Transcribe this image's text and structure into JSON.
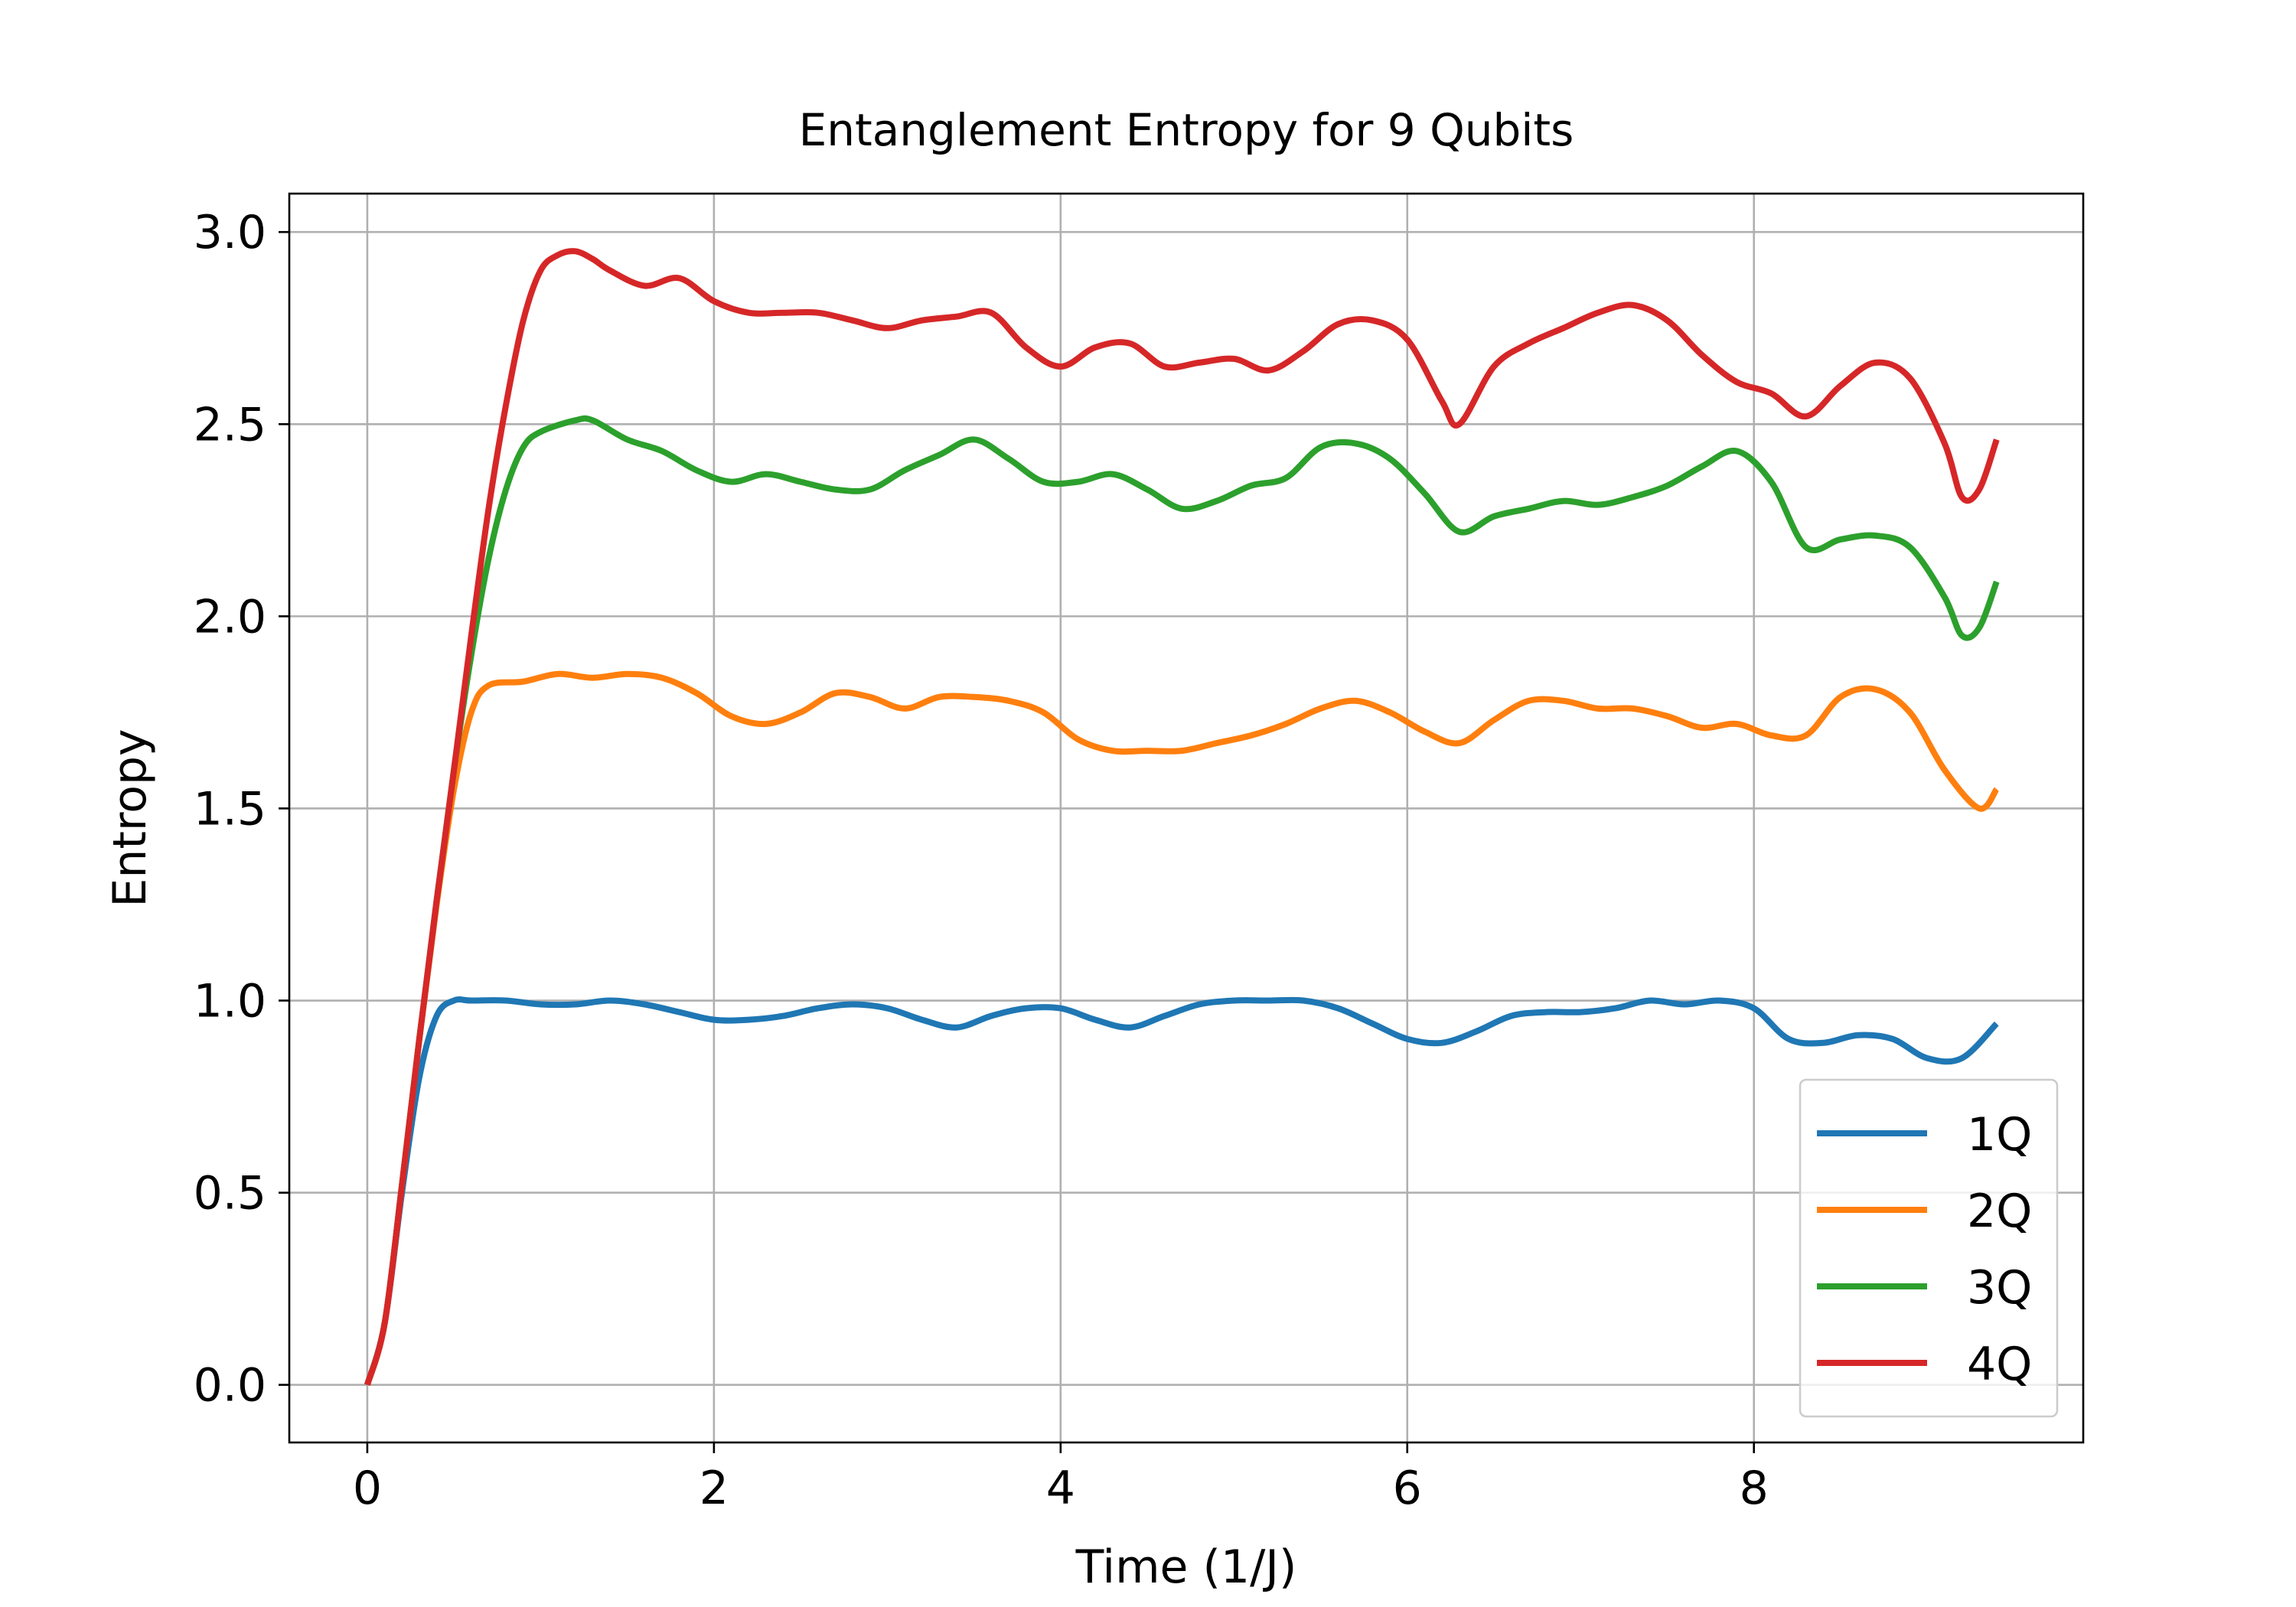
{
  "chart_data": {
    "type": "line",
    "title": "Entanglement Entropy for 9 Qubits",
    "xlabel": "Time (1/J)",
    "ylabel": "Entropy",
    "xlim": [
      -0.45,
      9.9
    ],
    "ylim": [
      -0.15,
      3.1
    ],
    "xticks": [
      0,
      2,
      4,
      6,
      8
    ],
    "yticks": [
      0.0,
      0.5,
      1.0,
      1.5,
      2.0,
      2.5,
      3.0
    ],
    "grid": true,
    "legend_position": "lower-right",
    "series": [
      {
        "name": "1Q",
        "color": "#1f77b4",
        "points": [
          [
            0,
            0
          ],
          [
            0.1,
            0.16
          ],
          [
            0.2,
            0.5
          ],
          [
            0.3,
            0.8
          ],
          [
            0.4,
            0.96
          ],
          [
            0.5,
            1.0
          ],
          [
            0.6,
            1.0
          ],
          [
            0.8,
            1.0
          ],
          [
            1.0,
            0.99
          ],
          [
            1.2,
            0.99
          ],
          [
            1.4,
            1.0
          ],
          [
            1.6,
            0.99
          ],
          [
            1.8,
            0.97
          ],
          [
            2.0,
            0.95
          ],
          [
            2.2,
            0.95
          ],
          [
            2.4,
            0.96
          ],
          [
            2.6,
            0.98
          ],
          [
            2.8,
            0.99
          ],
          [
            3.0,
            0.98
          ],
          [
            3.2,
            0.95
          ],
          [
            3.4,
            0.93
          ],
          [
            3.6,
            0.96
          ],
          [
            3.8,
            0.98
          ],
          [
            4.0,
            0.98
          ],
          [
            4.2,
            0.95
          ],
          [
            4.4,
            0.93
          ],
          [
            4.6,
            0.96
          ],
          [
            4.8,
            0.99
          ],
          [
            5.0,
            1.0
          ],
          [
            5.2,
            1.0
          ],
          [
            5.4,
            1.0
          ],
          [
            5.6,
            0.98
          ],
          [
            5.8,
            0.94
          ],
          [
            6.0,
            0.9
          ],
          [
            6.2,
            0.89
          ],
          [
            6.4,
            0.92
          ],
          [
            6.6,
            0.96
          ],
          [
            6.8,
            0.97
          ],
          [
            7.0,
            0.97
          ],
          [
            7.2,
            0.98
          ],
          [
            7.4,
            1.0
          ],
          [
            7.6,
            0.99
          ],
          [
            7.8,
            1.0
          ],
          [
            8.0,
            0.98
          ],
          [
            8.2,
            0.9
          ],
          [
            8.4,
            0.89
          ],
          [
            8.6,
            0.91
          ],
          [
            8.8,
            0.9
          ],
          [
            9.0,
            0.85
          ],
          [
            9.2,
            0.85
          ],
          [
            9.4,
            0.94
          ]
        ]
      },
      {
        "name": "2Q",
        "color": "#ff7f0e",
        "points": [
          [
            0,
            0
          ],
          [
            0.1,
            0.16
          ],
          [
            0.2,
            0.52
          ],
          [
            0.3,
            0.9
          ],
          [
            0.4,
            1.25
          ],
          [
            0.5,
            1.55
          ],
          [
            0.6,
            1.75
          ],
          [
            0.7,
            1.82
          ],
          [
            0.9,
            1.83
          ],
          [
            1.1,
            1.85
          ],
          [
            1.3,
            1.84
          ],
          [
            1.5,
            1.85
          ],
          [
            1.7,
            1.84
          ],
          [
            1.9,
            1.8
          ],
          [
            2.1,
            1.74
          ],
          [
            2.3,
            1.72
          ],
          [
            2.5,
            1.75
          ],
          [
            2.7,
            1.8
          ],
          [
            2.9,
            1.79
          ],
          [
            3.1,
            1.76
          ],
          [
            3.3,
            1.79
          ],
          [
            3.5,
            1.79
          ],
          [
            3.7,
            1.78
          ],
          [
            3.9,
            1.75
          ],
          [
            4.1,
            1.68
          ],
          [
            4.3,
            1.65
          ],
          [
            4.5,
            1.65
          ],
          [
            4.7,
            1.65
          ],
          [
            4.9,
            1.67
          ],
          [
            5.1,
            1.69
          ],
          [
            5.3,
            1.72
          ],
          [
            5.5,
            1.76
          ],
          [
            5.7,
            1.78
          ],
          [
            5.9,
            1.75
          ],
          [
            6.1,
            1.7
          ],
          [
            6.3,
            1.67
          ],
          [
            6.5,
            1.73
          ],
          [
            6.7,
            1.78
          ],
          [
            6.9,
            1.78
          ],
          [
            7.1,
            1.76
          ],
          [
            7.3,
            1.76
          ],
          [
            7.5,
            1.74
          ],
          [
            7.7,
            1.71
          ],
          [
            7.9,
            1.72
          ],
          [
            8.1,
            1.69
          ],
          [
            8.3,
            1.69
          ],
          [
            8.5,
            1.79
          ],
          [
            8.7,
            1.81
          ],
          [
            8.9,
            1.75
          ],
          [
            9.1,
            1.6
          ],
          [
            9.3,
            1.5
          ],
          [
            9.4,
            1.55
          ]
        ]
      },
      {
        "name": "3Q",
        "color": "#2ca02c",
        "points": [
          [
            0,
            0
          ],
          [
            0.1,
            0.16
          ],
          [
            0.2,
            0.52
          ],
          [
            0.3,
            0.9
          ],
          [
            0.4,
            1.26
          ],
          [
            0.5,
            1.6
          ],
          [
            0.6,
            1.9
          ],
          [
            0.7,
            2.15
          ],
          [
            0.8,
            2.33
          ],
          [
            0.9,
            2.44
          ],
          [
            1.0,
            2.48
          ],
          [
            1.2,
            2.51
          ],
          [
            1.3,
            2.51
          ],
          [
            1.5,
            2.46
          ],
          [
            1.7,
            2.43
          ],
          [
            1.9,
            2.38
          ],
          [
            2.1,
            2.35
          ],
          [
            2.3,
            2.37
          ],
          [
            2.5,
            2.35
          ],
          [
            2.7,
            2.33
          ],
          [
            2.9,
            2.33
          ],
          [
            3.1,
            2.38
          ],
          [
            3.3,
            2.42
          ],
          [
            3.5,
            2.46
          ],
          [
            3.7,
            2.41
          ],
          [
            3.9,
            2.35
          ],
          [
            4.1,
            2.35
          ],
          [
            4.3,
            2.37
          ],
          [
            4.5,
            2.33
          ],
          [
            4.7,
            2.28
          ],
          [
            4.9,
            2.3
          ],
          [
            5.1,
            2.34
          ],
          [
            5.3,
            2.36
          ],
          [
            5.5,
            2.44
          ],
          [
            5.7,
            2.45
          ],
          [
            5.9,
            2.41
          ],
          [
            6.1,
            2.32
          ],
          [
            6.3,
            2.22
          ],
          [
            6.5,
            2.26
          ],
          [
            6.7,
            2.28
          ],
          [
            6.9,
            2.3
          ],
          [
            7.1,
            2.29
          ],
          [
            7.3,
            2.31
          ],
          [
            7.5,
            2.34
          ],
          [
            7.7,
            2.39
          ],
          [
            7.9,
            2.43
          ],
          [
            8.1,
            2.35
          ],
          [
            8.3,
            2.18
          ],
          [
            8.5,
            2.2
          ],
          [
            8.7,
            2.21
          ],
          [
            8.9,
            2.18
          ],
          [
            9.1,
            2.05
          ],
          [
            9.2,
            1.95
          ],
          [
            9.3,
            1.97
          ],
          [
            9.4,
            2.09
          ]
        ]
      },
      {
        "name": "4Q",
        "color": "#d62728",
        "points": [
          [
            0,
            0
          ],
          [
            0.1,
            0.16
          ],
          [
            0.2,
            0.52
          ],
          [
            0.3,
            0.9
          ],
          [
            0.4,
            1.26
          ],
          [
            0.5,
            1.6
          ],
          [
            0.6,
            1.95
          ],
          [
            0.7,
            2.28
          ],
          [
            0.8,
            2.55
          ],
          [
            0.9,
            2.77
          ],
          [
            1.0,
            2.9
          ],
          [
            1.1,
            2.94
          ],
          [
            1.2,
            2.95
          ],
          [
            1.3,
            2.93
          ],
          [
            1.4,
            2.9
          ],
          [
            1.6,
            2.86
          ],
          [
            1.8,
            2.88
          ],
          [
            2.0,
            2.82
          ],
          [
            2.2,
            2.79
          ],
          [
            2.4,
            2.79
          ],
          [
            2.6,
            2.79
          ],
          [
            2.8,
            2.77
          ],
          [
            3.0,
            2.75
          ],
          [
            3.2,
            2.77
          ],
          [
            3.4,
            2.78
          ],
          [
            3.6,
            2.79
          ],
          [
            3.8,
            2.7
          ],
          [
            4.0,
            2.65
          ],
          [
            4.2,
            2.7
          ],
          [
            4.4,
            2.71
          ],
          [
            4.6,
            2.65
          ],
          [
            4.8,
            2.66
          ],
          [
            5.0,
            2.67
          ],
          [
            5.2,
            2.64
          ],
          [
            5.4,
            2.69
          ],
          [
            5.6,
            2.76
          ],
          [
            5.8,
            2.77
          ],
          [
            6.0,
            2.72
          ],
          [
            6.2,
            2.56
          ],
          [
            6.3,
            2.5
          ],
          [
            6.5,
            2.65
          ],
          [
            6.7,
            2.71
          ],
          [
            6.9,
            2.75
          ],
          [
            7.1,
            2.79
          ],
          [
            7.3,
            2.81
          ],
          [
            7.5,
            2.77
          ],
          [
            7.7,
            2.68
          ],
          [
            7.9,
            2.61
          ],
          [
            8.1,
            2.58
          ],
          [
            8.3,
            2.52
          ],
          [
            8.5,
            2.6
          ],
          [
            8.7,
            2.66
          ],
          [
            8.9,
            2.62
          ],
          [
            9.1,
            2.45
          ],
          [
            9.2,
            2.31
          ],
          [
            9.3,
            2.33
          ],
          [
            9.4,
            2.46
          ]
        ]
      }
    ]
  }
}
